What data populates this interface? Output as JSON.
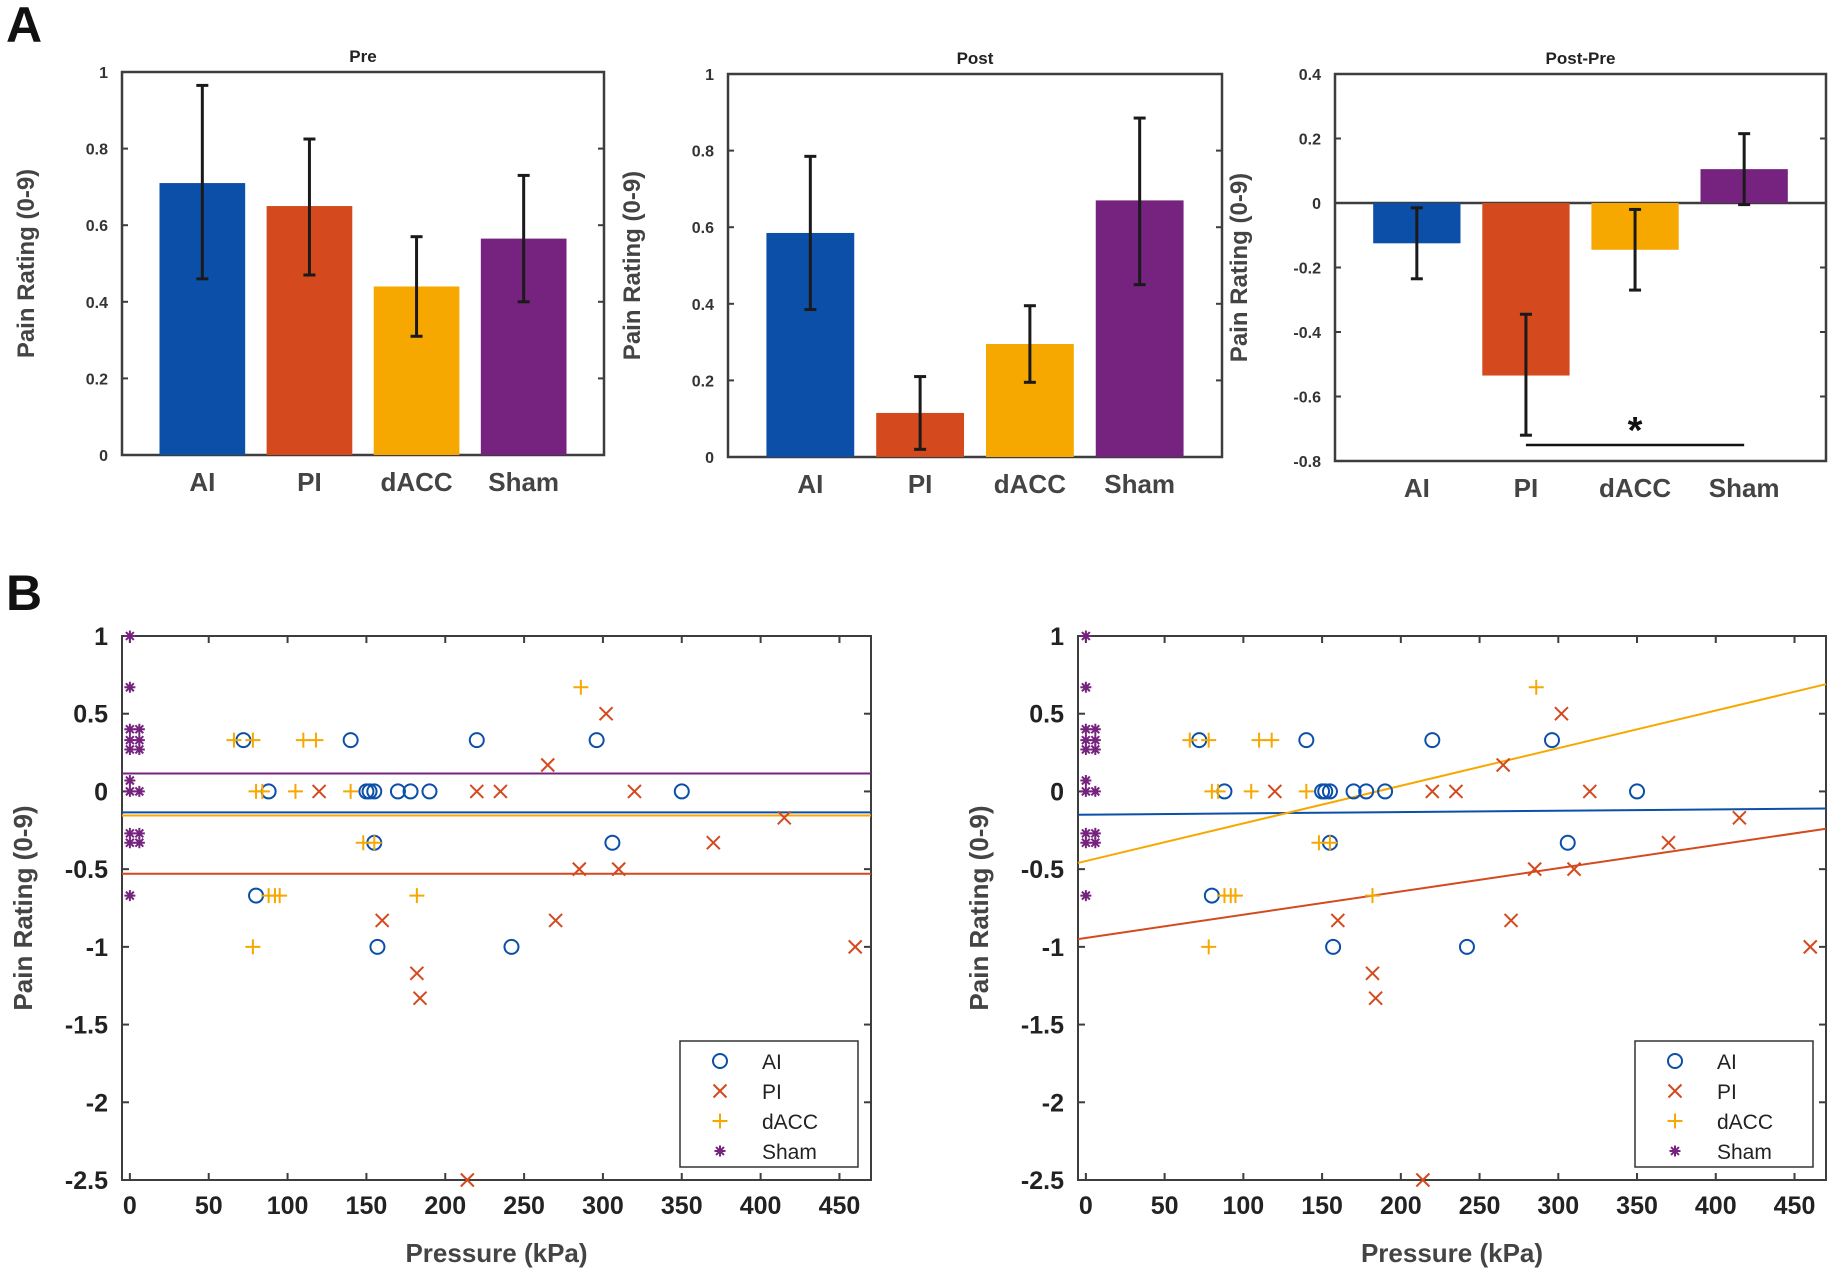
{
  "panel_labels": {
    "a": "A",
    "b": "B"
  },
  "colors": {
    "AI": "#0b4fa8",
    "PI": "#d4491d",
    "dACC": "#f6a800",
    "Sham": "#76237f"
  },
  "chart_data": [
    {
      "id": "pre",
      "type": "bar",
      "title": "Pre",
      "ylabel": "Pain Rating (0-9)",
      "xlabel": "",
      "categories": [
        "AI",
        "PI",
        "dACC",
        "Sham"
      ],
      "values": [
        0.71,
        0.65,
        0.44,
        0.565
      ],
      "errors": [
        [
          0.46,
          0.965
        ],
        [
          0.47,
          0.825
        ],
        [
          0.31,
          0.57
        ],
        [
          0.4,
          0.73
        ]
      ],
      "ylim": [
        0,
        1
      ],
      "yticks": [
        0,
        0.2,
        0.4,
        0.6,
        0.8,
        1
      ],
      "ytick_labels": [
        "0",
        "0.2",
        "0.4",
        "0.6",
        "0.8",
        "1"
      ]
    },
    {
      "id": "post",
      "type": "bar",
      "title": "Post",
      "ylabel": "Pain Rating (0-9)",
      "xlabel": "",
      "categories": [
        "AI",
        "PI",
        "dACC",
        "Sham"
      ],
      "values": [
        0.585,
        0.115,
        0.295,
        0.67
      ],
      "errors": [
        [
          0.385,
          0.785
        ],
        [
          0.02,
          0.21
        ],
        [
          0.195,
          0.395
        ],
        [
          0.45,
          0.885
        ]
      ],
      "ylim": [
        0,
        1
      ],
      "yticks": [
        0,
        0.2,
        0.4,
        0.6,
        0.8,
        1
      ],
      "ytick_labels": [
        "0",
        "0.2",
        "0.4",
        "0.6",
        "0.8",
        "1"
      ]
    },
    {
      "id": "postpre",
      "type": "bar",
      "title": "Post-Pre",
      "ylabel": "Pain Rating (0-9)",
      "xlabel": "",
      "categories": [
        "AI",
        "PI",
        "dACC",
        "Sham"
      ],
      "values": [
        -0.125,
        -0.535,
        -0.145,
        0.105
      ],
      "errors": [
        [
          -0.235,
          -0.015
        ],
        [
          -0.72,
          -0.345
        ],
        [
          -0.27,
          -0.02
        ],
        [
          -0.005,
          0.215
        ]
      ],
      "ylim": [
        -0.8,
        0.4
      ],
      "yticks": [
        -0.8,
        -0.6,
        -0.4,
        -0.2,
        0,
        0.2,
        0.4
      ],
      "ytick_labels": [
        "-0.8",
        "-0.6",
        "-0.4",
        "-0.2",
        "0",
        "0.2",
        "0.4"
      ],
      "significance": {
        "label": "*",
        "from": "PI",
        "to": "Sham"
      }
    },
    {
      "id": "scatter_mean",
      "type": "scatter",
      "title": "",
      "xlabel": "Pressure (kPa)",
      "ylabel": "Pain Rating (0-9)",
      "xlim": [
        -5,
        470
      ],
      "ylim": [
        -2.5,
        1
      ],
      "xticks": [
        0,
        50,
        100,
        150,
        200,
        250,
        300,
        350,
        400,
        450
      ],
      "xtick_labels": [
        "0",
        "50",
        "100",
        "150",
        "200",
        "250",
        "300",
        "350",
        "400",
        "450"
      ],
      "yticks": [
        -2.5,
        -2,
        -1.5,
        -1,
        -0.5,
        0,
        0.5,
        1
      ],
      "ytick_labels": [
        "-2.5",
        "-2",
        "-1.5",
        "-1",
        "-0.5",
        "0",
        "0.5",
        "1"
      ],
      "legend": [
        "AI",
        "PI",
        "dACC",
        "Sham"
      ],
      "legend_position": "bottom-right",
      "series": [
        {
          "name": "AI",
          "marker": "circle",
          "points": [
            [
              72,
              0.33
            ],
            [
              80,
              -0.67
            ],
            [
              88,
              0
            ],
            [
              140,
              0.33
            ],
            [
              150,
              0
            ],
            [
              152,
              0
            ],
            [
              155,
              0
            ],
            [
              155,
              -0.33
            ],
            [
              157,
              -1
            ],
            [
              170,
              0
            ],
            [
              178,
              0
            ],
            [
              190,
              0
            ],
            [
              220,
              0.33
            ],
            [
              242,
              -1
            ],
            [
              296,
              0.33
            ],
            [
              306,
              -0.33
            ],
            [
              350,
              0
            ]
          ]
        },
        {
          "name": "PI",
          "marker": "x",
          "points": [
            [
              120,
              0
            ],
            [
              160,
              -0.83
            ],
            [
              182,
              -1.17
            ],
            [
              184,
              -1.33
            ],
            [
              214,
              -2.5
            ],
            [
              220,
              0
            ],
            [
              235,
              0
            ],
            [
              265,
              0.17
            ],
            [
              270,
              -0.83
            ],
            [
              285,
              -0.5
            ],
            [
              302,
              0.5
            ],
            [
              310,
              -0.5
            ],
            [
              320,
              0
            ],
            [
              370,
              -0.33
            ],
            [
              415,
              -0.17
            ],
            [
              460,
              -1
            ]
          ]
        },
        {
          "name": "dACC",
          "marker": "plus",
          "points": [
            [
              66,
              0.33
            ],
            [
              78,
              0.33
            ],
            [
              80,
              0
            ],
            [
              78,
              -1
            ],
            [
              84,
              0
            ],
            [
              88,
              -0.67
            ],
            [
              92,
              -0.67
            ],
            [
              95,
              -0.67
            ],
            [
              105,
              0
            ],
            [
              110,
              0.33
            ],
            [
              118,
              0.33
            ],
            [
              140,
              0
            ],
            [
              148,
              -0.33
            ],
            [
              155,
              -0.33
            ],
            [
              182,
              -0.67
            ],
            [
              286,
              0.67
            ]
          ]
        },
        {
          "name": "Sham",
          "marker": "asterisk",
          "points": [
            [
              0,
              1
            ],
            [
              0,
              0.67
            ],
            [
              0,
              0.33
            ],
            [
              0,
              0.4
            ],
            [
              0,
              0.27
            ],
            [
              0,
              0.07
            ],
            [
              0,
              0
            ],
            [
              0,
              -0.27
            ],
            [
              0,
              -0.33
            ],
            [
              0,
              -0.67
            ],
            [
              6,
              0.4
            ],
            [
              6,
              0.33
            ],
            [
              6,
              0.27
            ],
            [
              6,
              0
            ],
            [
              6,
              -0.27
            ],
            [
              6,
              -0.33
            ]
          ]
        }
      ],
      "fit_lines": [
        {
          "name": "AI",
          "x": [
            -5,
            470
          ],
          "y": [
            -0.135,
            -0.135
          ]
        },
        {
          "name": "PI",
          "x": [
            -5,
            470
          ],
          "y": [
            -0.53,
            -0.53
          ]
        },
        {
          "name": "dACC",
          "x": [
            -5,
            470
          ],
          "y": [
            -0.155,
            -0.155
          ]
        },
        {
          "name": "Sham",
          "x": [
            -5,
            470
          ],
          "y": [
            0.115,
            0.115
          ]
        }
      ]
    },
    {
      "id": "scatter_fit",
      "type": "scatter",
      "title": "",
      "xlabel": "Pressure (kPa)",
      "ylabel": "Pain Rating (0-9)",
      "xlim": [
        -5,
        470
      ],
      "ylim": [
        -2.5,
        1
      ],
      "xticks": [
        0,
        50,
        100,
        150,
        200,
        250,
        300,
        350,
        400,
        450
      ],
      "xtick_labels": [
        "0",
        "50",
        "100",
        "150",
        "200",
        "250",
        "300",
        "350",
        "400",
        "450"
      ],
      "yticks": [
        -2.5,
        -2,
        -1.5,
        -1,
        -0.5,
        0,
        0.5,
        1
      ],
      "ytick_labels": [
        "-2.5",
        "-2",
        "-1.5",
        "-1",
        "-0.5",
        "0",
        "0.5",
        "1"
      ],
      "legend": [
        "AI",
        "PI",
        "dACC",
        "Sham"
      ],
      "legend_position": "bottom-right",
      "series": [
        {
          "name": "AI",
          "marker": "circle",
          "points": [
            [
              72,
              0.33
            ],
            [
              80,
              -0.67
            ],
            [
              88,
              0
            ],
            [
              140,
              0.33
            ],
            [
              150,
              0
            ],
            [
              152,
              0
            ],
            [
              155,
              0
            ],
            [
              155,
              -0.33
            ],
            [
              157,
              -1
            ],
            [
              170,
              0
            ],
            [
              178,
              0
            ],
            [
              190,
              0
            ],
            [
              220,
              0.33
            ],
            [
              242,
              -1
            ],
            [
              296,
              0.33
            ],
            [
              306,
              -0.33
            ],
            [
              350,
              0
            ]
          ]
        },
        {
          "name": "PI",
          "marker": "x",
          "points": [
            [
              120,
              0
            ],
            [
              160,
              -0.83
            ],
            [
              182,
              -1.17
            ],
            [
              184,
              -1.33
            ],
            [
              214,
              -2.5
            ],
            [
              220,
              0
            ],
            [
              235,
              0
            ],
            [
              265,
              0.17
            ],
            [
              270,
              -0.83
            ],
            [
              285,
              -0.5
            ],
            [
              302,
              0.5
            ],
            [
              310,
              -0.5
            ],
            [
              320,
              0
            ],
            [
              370,
              -0.33
            ],
            [
              415,
              -0.17
            ],
            [
              460,
              -1
            ]
          ]
        },
        {
          "name": "dACC",
          "marker": "plus",
          "points": [
            [
              66,
              0.33
            ],
            [
              78,
              0.33
            ],
            [
              80,
              0
            ],
            [
              78,
              -1
            ],
            [
              84,
              0
            ],
            [
              88,
              -0.67
            ],
            [
              92,
              -0.67
            ],
            [
              95,
              -0.67
            ],
            [
              105,
              0
            ],
            [
              110,
              0.33
            ],
            [
              118,
              0.33
            ],
            [
              140,
              0
            ],
            [
              148,
              -0.33
            ],
            [
              155,
              -0.33
            ],
            [
              182,
              -0.67
            ],
            [
              286,
              0.67
            ]
          ]
        },
        {
          "name": "Sham",
          "marker": "asterisk",
          "points": [
            [
              0,
              1
            ],
            [
              0,
              0.67
            ],
            [
              0,
              0.33
            ],
            [
              0,
              0.4
            ],
            [
              0,
              0.27
            ],
            [
              0,
              0.07
            ],
            [
              0,
              0
            ],
            [
              0,
              -0.27
            ],
            [
              0,
              -0.33
            ],
            [
              0,
              -0.67
            ],
            [
              6,
              0.4
            ],
            [
              6,
              0.33
            ],
            [
              6,
              0.27
            ],
            [
              6,
              0
            ],
            [
              6,
              -0.27
            ],
            [
              6,
              -0.33
            ]
          ]
        }
      ],
      "fit_lines": [
        {
          "name": "AI",
          "x": [
            -5,
            470
          ],
          "y": [
            -0.15,
            -0.11
          ]
        },
        {
          "name": "PI",
          "x": [
            -5,
            470
          ],
          "y": [
            -0.95,
            -0.24
          ]
        },
        {
          "name": "dACC",
          "x": [
            -5,
            470
          ],
          "y": [
            -0.46,
            0.69
          ]
        }
      ]
    }
  ]
}
